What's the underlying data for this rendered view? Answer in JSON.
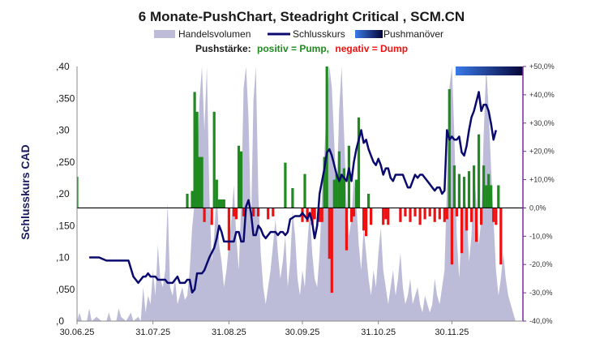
{
  "chart_data": {
    "type": "bar",
    "title": "6 Monate-PushChart, Steadright Critical , SCM.CN",
    "ylabel": "Schlusskurs CAD",
    "legend": [
      "Handelsvolumen",
      "Schlusskurs",
      "Pushmanöver"
    ],
    "push_prefix": "Pushstärke:",
    "push_positive": "positiv = Pump,",
    "push_negative": "negativ = Dump",
    "ylim": [
      0,
      0.4
    ],
    "y2lim": [
      -40,
      50
    ],
    "y_ticks": [
      ",0",
      ",050",
      ",10",
      ",150",
      ",20",
      ",250",
      ",30",
      ",350",
      ",40"
    ],
    "y_tick_values": [
      0,
      0.05,
      0.1,
      0.15,
      0.2,
      0.25,
      0.3,
      0.35,
      0.4
    ],
    "y2_ticks": [
      "-40,0%",
      "-30,0%",
      "-20,0%",
      "-10,0%",
      "0,0%",
      "+10,0%",
      "+20,0%",
      "+30,0%",
      "+40,0%",
      "+50,0%"
    ],
    "y2_tick_values": [
      -40,
      -30,
      -20,
      -10,
      0,
      10,
      20,
      30,
      40,
      50
    ],
    "x_ticks": [
      "30.06.25",
      "31.07.25",
      "31.08.25",
      "30.09.25",
      "31.10.25",
      "30.11.25"
    ],
    "x_tick_days": [
      0,
      31,
      62,
      92,
      123,
      153
    ],
    "x_max_day": 182,
    "colors": {
      "volume": "#bcbcd8",
      "close": "#0a0a6e",
      "pump": "#1f8a1f",
      "dump": "#ee1111",
      "push_grad_start": "#3a7ae8",
      "push_grad_end": "#050538",
      "axis_right": "#7a2a9a"
    },
    "volume_top": 0.6,
    "volume_series": [
      [
        0,
        0
      ],
      [
        1,
        0.02
      ],
      [
        2,
        0
      ],
      [
        4,
        0
      ],
      [
        5,
        0.03
      ],
      [
        6,
        0
      ],
      [
        8,
        0.01
      ],
      [
        10,
        0
      ],
      [
        12,
        0
      ],
      [
        13,
        0.02
      ],
      [
        14,
        0
      ],
      [
        16,
        0
      ],
      [
        17,
        0.03
      ],
      [
        18,
        0.01
      ],
      [
        20,
        0
      ],
      [
        22,
        0.02
      ],
      [
        23,
        0
      ],
      [
        25,
        0.01
      ],
      [
        26,
        0
      ],
      [
        27,
        0.08
      ],
      [
        28,
        0.02
      ],
      [
        29,
        0.06
      ],
      [
        30,
        0.04
      ],
      [
        31,
        0.12
      ],
      [
        32,
        0.06
      ],
      [
        33,
        0.18
      ],
      [
        34,
        0.1
      ],
      [
        35,
        0.08
      ],
      [
        36,
        0.12
      ],
      [
        37,
        0.28
      ],
      [
        38,
        0.08
      ],
      [
        39,
        0.06
      ],
      [
        40,
        0.1
      ],
      [
        41,
        0.04
      ],
      [
        42,
        0.06
      ],
      [
        43,
        0.08
      ],
      [
        44,
        0.05
      ],
      [
        45,
        0.06
      ],
      [
        46,
        0.12
      ],
      [
        47,
        0.22
      ],
      [
        48,
        0.28
      ],
      [
        49,
        0.36
      ],
      [
        50,
        0.52
      ],
      [
        51,
        0.6
      ],
      [
        52,
        0.45
      ],
      [
        53,
        0.6
      ],
      [
        54,
        0.3
      ],
      [
        55,
        0.14
      ],
      [
        56,
        0.2
      ],
      [
        57,
        0.32
      ],
      [
        58,
        0.18
      ],
      [
        59,
        0.14
      ],
      [
        60,
        0.08
      ],
      [
        61,
        0.12
      ],
      [
        62,
        0.18
      ],
      [
        63,
        0.24
      ],
      [
        64,
        0.32
      ],
      [
        65,
        0.2
      ],
      [
        66,
        0.12
      ],
      [
        67,
        0.28
      ],
      [
        68,
        0.55
      ],
      [
        69,
        0.6
      ],
      [
        70,
        0.48
      ],
      [
        71,
        0.22
      ],
      [
        72,
        0.52
      ],
      [
        73,
        0.6
      ],
      [
        74,
        0.3
      ],
      [
        75,
        0.16
      ],
      [
        76,
        0.08
      ],
      [
        77,
        0.04
      ],
      [
        78,
        0.08
      ],
      [
        79,
        0.12
      ],
      [
        80,
        0.18
      ],
      [
        81,
        0.24
      ],
      [
        82,
        0.16
      ],
      [
        83,
        0.1
      ],
      [
        84,
        0.14
      ],
      [
        85,
        0.2
      ],
      [
        86,
        0.08
      ],
      [
        87,
        0.14
      ],
      [
        88,
        0.26
      ],
      [
        89,
        0.2
      ],
      [
        90,
        0.1
      ],
      [
        91,
        0.06
      ],
      [
        92,
        0.12
      ],
      [
        93,
        0.08
      ],
      [
        94,
        0.18
      ],
      [
        95,
        0.26
      ],
      [
        96,
        0.16
      ],
      [
        97,
        0.1
      ],
      [
        98,
        0.08
      ],
      [
        99,
        0.16
      ],
      [
        100,
        0.3
      ],
      [
        101,
        0.4
      ],
      [
        102,
        0.52
      ],
      [
        103,
        0.6
      ],
      [
        104,
        0.55
      ],
      [
        105,
        0.42
      ],
      [
        106,
        0.3
      ],
      [
        107,
        0.5
      ],
      [
        108,
        0.6
      ],
      [
        109,
        0.44
      ],
      [
        110,
        0.28
      ],
      [
        111,
        0.2
      ],
      [
        112,
        0.24
      ],
      [
        113,
        0.34
      ],
      [
        114,
        0.28
      ],
      [
        115,
        0.18
      ],
      [
        116,
        0.12
      ],
      [
        117,
        0.22
      ],
      [
        118,
        0.16
      ],
      [
        119,
        0.1
      ],
      [
        120,
        0.06
      ],
      [
        121,
        0.12
      ],
      [
        122,
        0.08
      ],
      [
        123,
        0.16
      ],
      [
        124,
        0.22
      ],
      [
        125,
        0.12
      ],
      [
        126,
        0.08
      ],
      [
        127,
        0.04
      ],
      [
        128,
        0.08
      ],
      [
        129,
        0.12
      ],
      [
        130,
        0.06
      ],
      [
        131,
        0.1
      ],
      [
        132,
        0.16
      ],
      [
        133,
        0.08
      ],
      [
        134,
        0.04
      ],
      [
        135,
        0.06
      ],
      [
        136,
        0.1
      ],
      [
        137,
        0.04
      ],
      [
        138,
        0.06
      ],
      [
        139,
        0.08
      ],
      [
        140,
        0.04
      ],
      [
        141,
        0.02
      ],
      [
        142,
        0.06
      ],
      [
        143,
        0.04
      ],
      [
        144,
        0.02
      ],
      [
        145,
        0.04
      ],
      [
        146,
        0.1
      ],
      [
        147,
        0.06
      ],
      [
        148,
        0.04
      ],
      [
        149,
        0.08
      ],
      [
        150,
        0.12
      ],
      [
        151,
        0.32
      ],
      [
        152,
        0.55
      ],
      [
        153,
        0.6
      ],
      [
        154,
        0.44
      ],
      [
        155,
        0.2
      ],
      [
        156,
        0.1
      ],
      [
        157,
        0.22
      ],
      [
        158,
        0.3
      ],
      [
        159,
        0.26
      ],
      [
        160,
        0.14
      ],
      [
        161,
        0.2
      ],
      [
        162,
        0.36
      ],
      [
        163,
        0.28
      ],
      [
        164,
        0.18
      ],
      [
        165,
        0.24
      ],
      [
        166,
        0.44
      ],
      [
        167,
        0.6
      ],
      [
        168,
        0.5
      ],
      [
        169,
        0.36
      ],
      [
        170,
        0.24
      ],
      [
        171,
        0.12
      ],
      [
        172,
        0.06
      ],
      [
        173,
        0.1
      ],
      [
        174,
        0.16
      ],
      [
        175,
        0.1
      ],
      [
        176,
        0.06
      ],
      [
        177,
        0.04
      ],
      [
        178,
        0.02
      ],
      [
        179,
        0
      ]
    ],
    "close_series": [
      [
        5,
        0.1
      ],
      [
        9,
        0.1
      ],
      [
        12,
        0.095
      ],
      [
        16,
        0.095
      ],
      [
        19,
        0.095
      ],
      [
        21,
        0.095
      ],
      [
        23,
        0.07
      ],
      [
        25,
        0.06
      ],
      [
        27,
        0.07
      ],
      [
        28,
        0.07
      ],
      [
        29,
        0.075
      ],
      [
        30,
        0.07
      ],
      [
        32,
        0.07
      ],
      [
        33,
        0.065
      ],
      [
        34,
        0.065
      ],
      [
        36,
        0.065
      ],
      [
        37,
        0.06
      ],
      [
        39,
        0.06
      ],
      [
        41,
        0.07
      ],
      [
        42,
        0.06
      ],
      [
        44,
        0.06
      ],
      [
        45,
        0.065
      ],
      [
        46,
        0.065
      ],
      [
        47,
        0.045
      ],
      [
        48,
        0.05
      ],
      [
        49,
        0.075
      ],
      [
        51,
        0.075
      ],
      [
        52,
        0.08
      ],
      [
        54,
        0.1
      ],
      [
        56,
        0.115
      ],
      [
        57,
        0.13
      ],
      [
        58,
        0.15
      ],
      [
        59,
        0.14
      ],
      [
        60,
        0.125
      ],
      [
        61,
        0.125
      ],
      [
        62,
        0.125
      ],
      [
        63,
        0.125
      ],
      [
        64,
        0.125
      ],
      [
        65,
        0.14
      ],
      [
        66,
        0.14
      ],
      [
        67,
        0.125
      ],
      [
        68,
        0.125
      ],
      [
        69,
        0.18
      ],
      [
        70,
        0.19
      ],
      [
        71,
        0.17
      ],
      [
        72,
        0.135
      ],
      [
        73,
        0.135
      ],
      [
        74,
        0.15
      ],
      [
        75,
        0.145
      ],
      [
        76,
        0.135
      ],
      [
        77,
        0.13
      ],
      [
        78,
        0.135
      ],
      [
        79,
        0.14
      ],
      [
        80,
        0.14
      ],
      [
        81,
        0.14
      ],
      [
        82,
        0.135
      ],
      [
        83,
        0.14
      ],
      [
        84,
        0.14
      ],
      [
        85,
        0.135
      ],
      [
        86,
        0.14
      ],
      [
        87,
        0.16
      ],
      [
        89,
        0.165
      ],
      [
        90,
        0.165
      ],
      [
        91,
        0.165
      ],
      [
        92,
        0.17
      ],
      [
        93,
        0.165
      ],
      [
        94,
        0.16
      ],
      [
        95,
        0.17
      ],
      [
        96,
        0.155
      ],
      [
        97,
        0.13
      ],
      [
        98,
        0.15
      ],
      [
        99,
        0.2
      ],
      [
        100,
        0.22
      ],
      [
        101,
        0.24
      ],
      [
        102,
        0.265
      ],
      [
        103,
        0.27
      ],
      [
        104,
        0.26
      ],
      [
        105,
        0.245
      ],
      [
        106,
        0.23
      ],
      [
        107,
        0.22
      ],
      [
        108,
        0.23
      ],
      [
        109,
        0.225
      ],
      [
        110,
        0.22
      ],
      [
        111,
        0.24
      ],
      [
        112,
        0.22
      ],
      [
        113,
        0.25
      ],
      [
        114,
        0.27
      ],
      [
        115,
        0.285
      ],
      [
        116,
        0.3
      ],
      [
        117,
        0.28
      ],
      [
        118,
        0.285
      ],
      [
        119,
        0.27
      ],
      [
        120,
        0.26
      ],
      [
        121,
        0.25
      ],
      [
        122,
        0.245
      ],
      [
        123,
        0.255
      ],
      [
        124,
        0.245
      ],
      [
        125,
        0.23
      ],
      [
        126,
        0.24
      ],
      [
        127,
        0.24
      ],
      [
        128,
        0.225
      ],
      [
        129,
        0.22
      ],
      [
        130,
        0.23
      ],
      [
        131,
        0.23
      ],
      [
        133,
        0.23
      ],
      [
        134,
        0.22
      ],
      [
        135,
        0.21
      ],
      [
        136,
        0.21
      ],
      [
        137,
        0.22
      ],
      [
        138,
        0.23
      ],
      [
        139,
        0.225
      ],
      [
        140,
        0.23
      ],
      [
        141,
        0.23
      ],
      [
        142,
        0.225
      ],
      [
        143,
        0.22
      ],
      [
        144,
        0.215
      ],
      [
        145,
        0.21
      ],
      [
        146,
        0.205
      ],
      [
        147,
        0.21
      ],
      [
        148,
        0.21
      ],
      [
        149,
        0.2
      ],
      [
        150,
        0.205
      ],
      [
        151,
        0.3
      ],
      [
        152,
        0.285
      ],
      [
        153,
        0.29
      ],
      [
        154,
        0.285
      ],
      [
        155,
        0.285
      ],
      [
        156,
        0.29
      ],
      [
        157,
        0.265
      ],
      [
        158,
        0.26
      ],
      [
        159,
        0.275
      ],
      [
        160,
        0.3
      ],
      [
        161,
        0.32
      ],
      [
        162,
        0.33
      ],
      [
        163,
        0.345
      ],
      [
        164,
        0.36
      ],
      [
        165,
        0.33
      ],
      [
        166,
        0.34
      ],
      [
        167,
        0.34
      ],
      [
        168,
        0.33
      ],
      [
        169,
        0.31
      ],
      [
        170,
        0.285
      ],
      [
        171,
        0.3
      ]
    ],
    "push_bars": [
      [
        0,
        11
      ],
      [
        45,
        5
      ],
      [
        47,
        6
      ],
      [
        48,
        41
      ],
      [
        49,
        34
      ],
      [
        50,
        18
      ],
      [
        51,
        18
      ],
      [
        52,
        -5
      ],
      [
        55,
        -6
      ],
      [
        56,
        34
      ],
      [
        57,
        10
      ],
      [
        58,
        3
      ],
      [
        59,
        3
      ],
      [
        60,
        3
      ],
      [
        62,
        -15
      ],
      [
        64,
        -3
      ],
      [
        65,
        -4
      ],
      [
        66,
        22
      ],
      [
        67,
        20
      ],
      [
        68,
        -3
      ],
      [
        72,
        -3
      ],
      [
        74,
        -3
      ],
      [
        78,
        -4
      ],
      [
        80,
        -3
      ],
      [
        85,
        16
      ],
      [
        88,
        7
      ],
      [
        92,
        -5
      ],
      [
        93,
        12
      ],
      [
        94,
        -5
      ],
      [
        96,
        -6
      ],
      [
        97,
        -4
      ],
      [
        99,
        -5
      ],
      [
        100,
        -5
      ],
      [
        101,
        18
      ],
      [
        102,
        50
      ],
      [
        103,
        -18
      ],
      [
        104,
        -30
      ],
      [
        105,
        10
      ],
      [
        106,
        12
      ],
      [
        107,
        20
      ],
      [
        108,
        12
      ],
      [
        109,
        14
      ],
      [
        110,
        -15
      ],
      [
        111,
        22
      ],
      [
        112,
        -5
      ],
      [
        113,
        -3
      ],
      [
        114,
        10
      ],
      [
        115,
        32
      ],
      [
        117,
        -8
      ],
      [
        118,
        -10
      ],
      [
        119,
        5
      ],
      [
        120,
        -6
      ],
      [
        125,
        -6
      ],
      [
        126,
        -4
      ],
      [
        127,
        -6
      ],
      [
        132,
        -5
      ],
      [
        134,
        -3
      ],
      [
        136,
        -5
      ],
      [
        138,
        -3
      ],
      [
        140,
        -6
      ],
      [
        142,
        -4
      ],
      [
        144,
        -3
      ],
      [
        146,
        -5
      ],
      [
        148,
        -4
      ],
      [
        150,
        -5
      ],
      [
        151,
        -4
      ],
      [
        152,
        42
      ],
      [
        153,
        -20
      ],
      [
        154,
        15
      ],
      [
        155,
        -3
      ],
      [
        156,
        12
      ],
      [
        157,
        -16
      ],
      [
        158,
        11
      ],
      [
        159,
        -8
      ],
      [
        160,
        13
      ],
      [
        161,
        -5
      ],
      [
        162,
        15
      ],
      [
        163,
        -12
      ],
      [
        164,
        26
      ],
      [
        165,
        -6
      ],
      [
        166,
        15
      ],
      [
        167,
        8
      ],
      [
        168,
        12
      ],
      [
        169,
        8
      ],
      [
        170,
        -5
      ],
      [
        171,
        -6
      ],
      [
        172,
        8
      ],
      [
        173,
        -20
      ]
    ]
  }
}
